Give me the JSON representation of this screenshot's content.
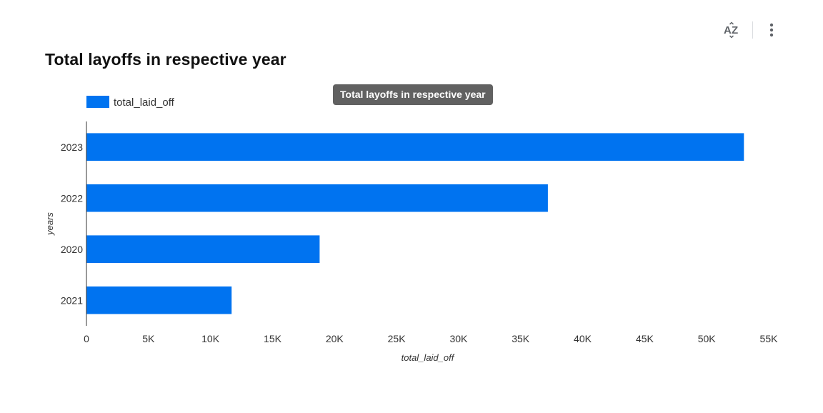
{
  "header": {
    "title": "Total layoffs in respective year",
    "sort_icon": "sort-az-icon",
    "more_icon": "more-vert-icon"
  },
  "tooltip": {
    "text": "Total layoffs in respective year"
  },
  "colors": {
    "bar": "#0073f0",
    "axis": "#333333"
  },
  "chart_data": {
    "type": "bar",
    "orientation": "horizontal",
    "title": "Total layoffs in respective year",
    "categories": [
      "2023",
      "2022",
      "2020",
      "2021"
    ],
    "series": [
      {
        "name": "total_laid_off",
        "values": [
          53000,
          37200,
          18800,
          11700
        ]
      }
    ],
    "xlabel": "total_laid_off",
    "ylabel": "years",
    "xlim": [
      0,
      55000
    ],
    "xticks": [
      0,
      5000,
      10000,
      15000,
      20000,
      25000,
      30000,
      35000,
      40000,
      45000,
      50000,
      55000
    ],
    "xtick_labels": [
      "0",
      "5K",
      "10K",
      "15K",
      "20K",
      "25K",
      "30K",
      "35K",
      "40K",
      "45K",
      "50K",
      "55K"
    ],
    "grid": false,
    "legend": "top-left"
  }
}
